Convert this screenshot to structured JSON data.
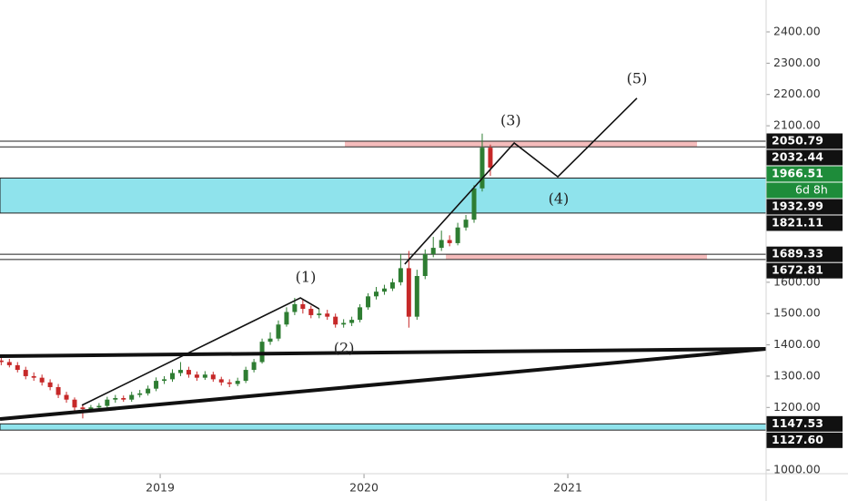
{
  "chart_data": {
    "type": "candlestick",
    "up_color": "#2e7d32",
    "down_color": "#c62828",
    "xlim": [
      2018.214,
      2021.973
    ],
    "xticks": [
      2019,
      2020,
      2021
    ],
    "ylim": [
      988.4,
      2501.9
    ],
    "yticks": [
      {
        "value": 2400,
        "label": "2400.00"
      },
      {
        "value": 2300,
        "label": "2300.00"
      },
      {
        "value": 2200,
        "label": "2200.00"
      },
      {
        "value": 2100,
        "label": "2100.00"
      },
      {
        "value": 1600,
        "label": "1600.00"
      },
      {
        "value": 1500,
        "label": "1500.00"
      },
      {
        "value": 1400,
        "label": "1400.00"
      },
      {
        "value": 1300,
        "label": "1300.00"
      },
      {
        "value": 1200,
        "label": "1200.00"
      },
      {
        "value": 1000,
        "label": "1000.00"
      }
    ],
    "x": [
      2018.22,
      2018.26,
      2018.3,
      2018.34,
      2018.38,
      2018.42,
      2018.46,
      2018.5,
      2018.54,
      2018.58,
      2018.62,
      2018.66,
      2018.7,
      2018.74,
      2018.78,
      2018.82,
      2018.86,
      2018.9,
      2018.94,
      2018.98,
      2019.02,
      2019.06,
      2019.1,
      2019.14,
      2019.18,
      2019.22,
      2019.26,
      2019.3,
      2019.34,
      2019.38,
      2019.42,
      2019.46,
      2019.5,
      2019.54,
      2019.58,
      2019.62,
      2019.66,
      2019.7,
      2019.74,
      2019.78,
      2019.82,
      2019.86,
      2019.9,
      2019.94,
      2019.98,
      2020.02,
      2020.06,
      2020.1,
      2020.14,
      2020.18,
      2020.22,
      2020.26,
      2020.3,
      2020.34,
      2020.38,
      2020.42,
      2020.46,
      2020.5,
      2020.54,
      2020.58,
      2020.62
    ],
    "open": [
      1350,
      1345,
      1335,
      1320,
      1300,
      1295,
      1280,
      1265,
      1240,
      1225,
      1200,
      1195,
      1200,
      1205,
      1225,
      1230,
      1225,
      1240,
      1245,
      1260,
      1285,
      1290,
      1310,
      1320,
      1305,
      1295,
      1305,
      1290,
      1280,
      1275,
      1285,
      1320,
      1345,
      1410,
      1420,
      1465,
      1505,
      1530,
      1515,
      1495,
      1500,
      1490,
      1465,
      1470,
      1480,
      1520,
      1555,
      1570,
      1580,
      1600,
      1645,
      1490,
      1620,
      1690,
      1710,
      1735,
      1725,
      1775,
      1800,
      1900,
      2030
    ],
    "high": [
      1362,
      1355,
      1345,
      1330,
      1312,
      1305,
      1290,
      1275,
      1250,
      1232,
      1210,
      1208,
      1214,
      1234,
      1240,
      1238,
      1250,
      1256,
      1270,
      1296,
      1300,
      1322,
      1345,
      1330,
      1315,
      1316,
      1314,
      1298,
      1290,
      1295,
      1330,
      1355,
      1420,
      1440,
      1478,
      1520,
      1550,
      1545,
      1525,
      1515,
      1512,
      1500,
      1482,
      1490,
      1530,
      1565,
      1585,
      1592,
      1612,
      1690,
      1700,
      1640,
      1705,
      1745,
      1765,
      1750,
      1790,
      1815,
      1910,
      2075,
      2040
    ],
    "low": [
      1335,
      1328,
      1312,
      1290,
      1285,
      1270,
      1255,
      1230,
      1215,
      1190,
      1165,
      1185,
      1190,
      1198,
      1215,
      1218,
      1218,
      1232,
      1238,
      1252,
      1275,
      1282,
      1300,
      1295,
      1285,
      1288,
      1282,
      1270,
      1265,
      1268,
      1278,
      1312,
      1340,
      1400,
      1412,
      1458,
      1495,
      1500,
      1485,
      1485,
      1480,
      1455,
      1455,
      1460,
      1472,
      1512,
      1545,
      1560,
      1572,
      1590,
      1455,
      1480,
      1610,
      1680,
      1700,
      1715,
      1718,
      1765,
      1790,
      1890,
      1940
    ],
    "close": [
      1345,
      1335,
      1320,
      1300,
      1295,
      1280,
      1265,
      1240,
      1225,
      1200,
      1195,
      1200,
      1205,
      1225,
      1230,
      1225,
      1240,
      1245,
      1260,
      1285,
      1290,
      1310,
      1320,
      1305,
      1295,
      1305,
      1290,
      1280,
      1275,
      1285,
      1320,
      1345,
      1410,
      1420,
      1465,
      1505,
      1530,
      1515,
      1495,
      1500,
      1490,
      1465,
      1470,
      1480,
      1520,
      1555,
      1570,
      1580,
      1600,
      1645,
      1490,
      1620,
      1690,
      1710,
      1735,
      1725,
      1775,
      1800,
      1900,
      2030,
      1966.51
    ],
    "last_price": 1966.51,
    "countdown": "6d 8h",
    "levels": [
      2050.79,
      2032.44,
      1689.33,
      1672.81
    ],
    "zones": [
      {
        "low": 1821.11,
        "high": 1932.99
      },
      {
        "low": {
          "value": 1127.6,
          "label": "1127.60"
        },
        "high": 1147.53
      }
    ],
    "highlights": [
      {
        "x": [
          2019.906,
          2021.634
        ],
        "y": [
          2032.44,
          2050.79
        ]
      },
      {
        "x": [
          2020.402,
          2021.683
        ],
        "y": [
          1672.81,
          1689.33
        ]
      }
    ],
    "trend_lines": [
      {
        "x": [
          2018.214,
          2021.973
        ],
        "y": [
          1364,
          1387
        ]
      },
      {
        "x": [
          2018.214,
          2021.973
        ],
        "y": [
          1163,
          1387
        ]
      },
      {
        "x": [
          2018.616,
          2019.688,
          2019.78
        ],
        "y": [
          1207,
          1550,
          1515
        ]
      },
      {
        "x": [
          2020.2,
          2020.737,
          2020.951,
          2021.339
        ],
        "y": [
          1658,
          2045,
          1937,
          2188
        ]
      }
    ],
    "annotations": [
      {
        "text": "(1)",
        "x": 2019.714,
        "y": 1614
      },
      {
        "text": "(2)",
        "x": 2019.902,
        "y": 1387
      },
      {
        "text": "(3)",
        "x": 2020.72,
        "y": 2115
      },
      {
        "text": "(4)",
        "x": 2020.955,
        "y": 1864
      },
      {
        "text": "(5)",
        "x": 2021.339,
        "y": 2249
      }
    ]
  }
}
